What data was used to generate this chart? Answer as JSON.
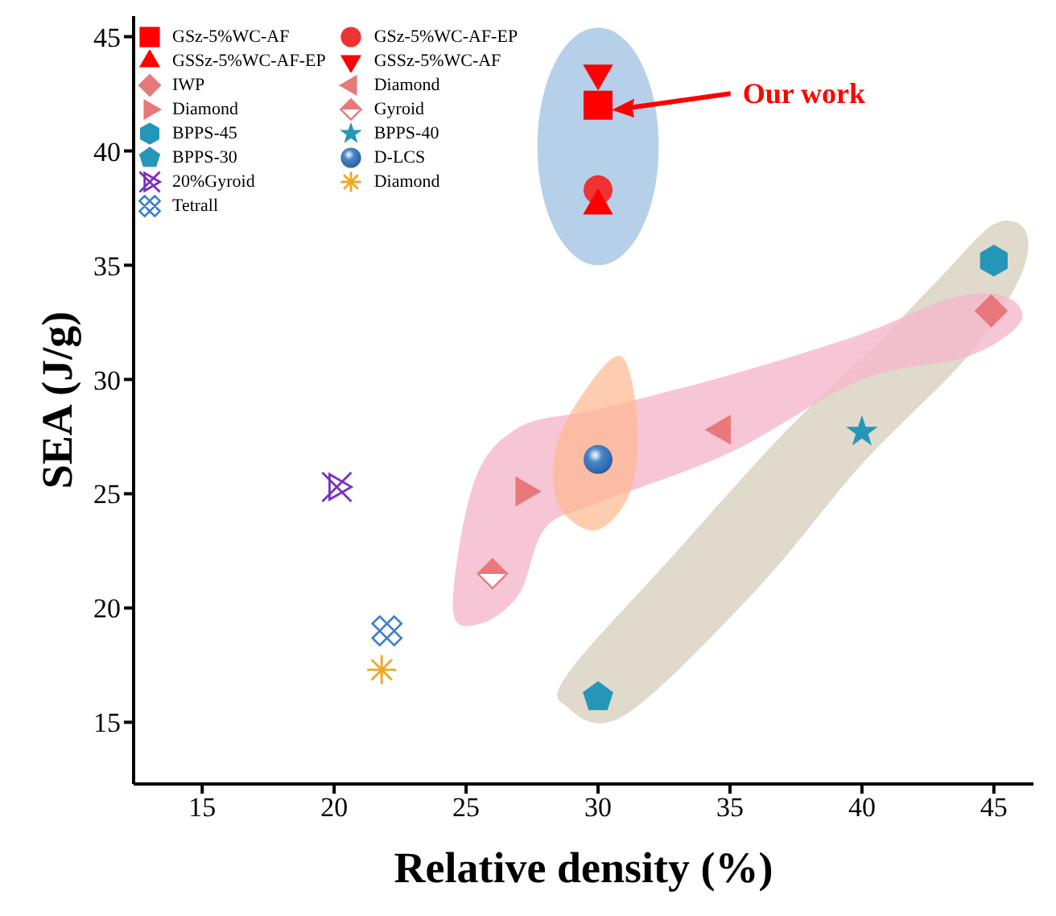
{
  "chart_data": {
    "type": "scatter",
    "xlabel": "Relative density (%)",
    "ylabel": "SEA (J/g)",
    "xlim": [
      12.4,
      46.5
    ],
    "xticks": [
      15,
      20,
      25,
      30,
      35,
      40,
      45
    ],
    "ylim": [
      12.3,
      45.9
    ],
    "yticks": [
      15,
      20,
      25,
      30,
      35,
      40,
      45
    ],
    "grid": false,
    "legend": "top left",
    "series": [
      {
        "name": "GSz-5%WC-AF",
        "color": "#ff0000",
        "marker": "square",
        "x": [
          30
        ],
        "values": [
          42.0
        ]
      },
      {
        "name": "GSz-5%WC-AF-EP",
        "color": "#ee3333",
        "marker": "circle",
        "x": [
          30
        ],
        "values": [
          38.3
        ]
      },
      {
        "name": "GSSz-5%WC-AF-EP",
        "color": "#ff0000",
        "marker": "triangle",
        "x": [
          30
        ],
        "values": [
          37.6
        ]
      },
      {
        "name": "GSSz-5%WC-AF",
        "color": "#ff0000",
        "x": [
          30
        ],
        "values": [
          43.4
        ]
      },
      {
        "name": "IWP",
        "color": "#e8787a",
        "marker": "diamond",
        "x": [
          44.9
        ],
        "values": [
          33.0
        ]
      },
      {
        "name": "Diamond",
        "color": "#e8787a",
        "x": [
          34.7
        ],
        "values": [
          27.8
        ]
      },
      {
        "name": "Diamond",
        "color": "#e8787a",
        "x": [
          27.2
        ],
        "values": [
          25.1
        ]
      },
      {
        "name": "Gyroid",
        "color": "#e8787a",
        "x": [
          26
        ],
        "values": [
          21.5
        ]
      },
      {
        "name": "BPPS-45",
        "color": "#2596b8",
        "x": [
          45
        ],
        "values": [
          35.2
        ]
      },
      {
        "name": "BPPS-40",
        "color": "#2596b8",
        "marker": "star",
        "x": [
          40
        ],
        "values": [
          27.7
        ]
      },
      {
        "name": "BPPS-30",
        "color": "#2596b8",
        "x": [
          30
        ],
        "values": [
          16.1
        ]
      },
      {
        "name": "D-LCS",
        "color": "#4a86c8",
        "x": [
          30
        ],
        "values": [
          26.5
        ]
      },
      {
        "name": "20%Gyroid",
        "color": "#7b2fbf",
        "x": [
          20.1
        ],
        "values": [
          25.3
        ]
      },
      {
        "name": "Diamond",
        "color": "#f0a820",
        "x": [
          21.8
        ],
        "values": [
          17.3
        ]
      },
      {
        "name": "Tetrall",
        "color": "#3d7fd0",
        "x": [
          22
        ],
        "values": [
          19.0
        ]
      }
    ],
    "annotations": [
      "Our work"
    ]
  }
}
